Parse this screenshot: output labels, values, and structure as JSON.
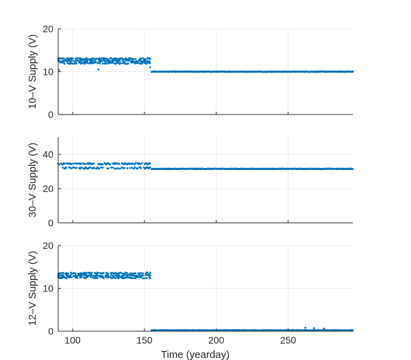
{
  "chart_data": [
    {
      "type": "scatter",
      "ylabel": "10–V Supply (V)",
      "xlabel": "",
      "xlim": [
        90,
        295
      ],
      "ylim": [
        0,
        20
      ],
      "xticks": [
        100,
        150,
        200,
        250
      ],
      "yticks": [
        0,
        10,
        20
      ],
      "show_xtick_labels": false,
      "grid": true,
      "color": "#0072BD",
      "segments": [
        {
          "x_start": 90,
          "x_end": 154,
          "levels": [
            13,
            12.5,
            12
          ]
        },
        {
          "x_start": 155,
          "x_end": 295,
          "levels": [
            10
          ]
        }
      ],
      "outliers": [
        {
          "x": 90.5,
          "y": 10.4
        },
        {
          "x": 118,
          "y": 10.5
        },
        {
          "x": 154,
          "y": 11
        }
      ]
    },
    {
      "type": "scatter",
      "ylabel": "30–V Supply (V)",
      "xlabel": "",
      "xlim": [
        90,
        295
      ],
      "ylim": [
        0,
        50
      ],
      "xticks": [
        100,
        150,
        200,
        250
      ],
      "yticks": [
        0,
        20,
        40
      ],
      "show_xtick_labels": false,
      "grid": true,
      "color": "#0072BD",
      "segments": [
        {
          "x_start": 90,
          "x_end": 154,
          "levels": [
            34.5,
            32
          ]
        },
        {
          "x_start": 155,
          "x_end": 295,
          "levels": [
            31.5
          ]
        }
      ],
      "outliers": []
    },
    {
      "type": "scatter",
      "ylabel": "12–V Supply (V)",
      "xlabel": "Time (yearday)",
      "xlim": [
        90,
        295
      ],
      "ylim": [
        0,
        20
      ],
      "xticks": [
        100,
        150,
        200,
        250
      ],
      "yticks": [
        0,
        10,
        20
      ],
      "show_xtick_labels": true,
      "grid": true,
      "color": "#0072BD",
      "segments": [
        {
          "x_start": 90,
          "x_end": 154,
          "levels": [
            13.5,
            13,
            12.5
          ]
        },
        {
          "x_start": 155,
          "x_end": 295,
          "levels": [
            0.2
          ]
        }
      ],
      "outliers": [
        {
          "x": 262,
          "y": 0.8
        },
        {
          "x": 268,
          "y": 0.7
        },
        {
          "x": 275,
          "y": 0.6
        }
      ]
    }
  ]
}
